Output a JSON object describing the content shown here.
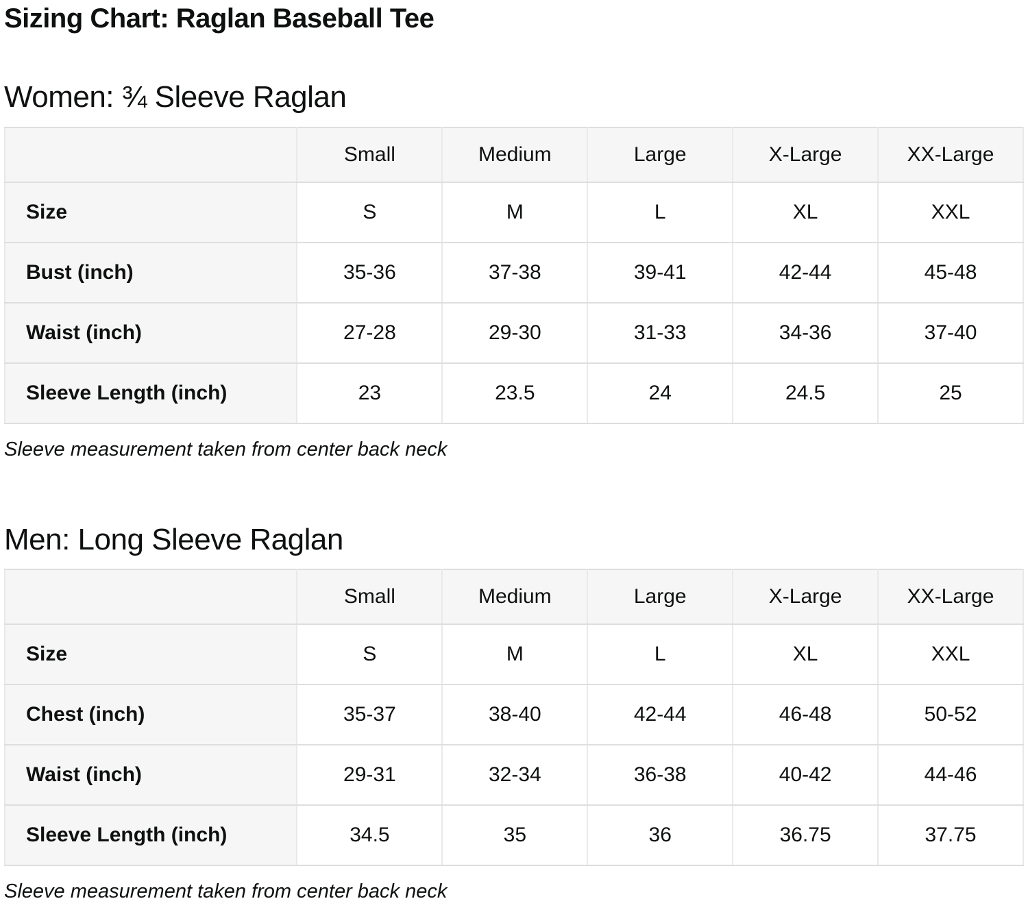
{
  "page": {
    "title": "Sizing Chart: Raglan Baseball Tee"
  },
  "colors": {
    "page_bg": "#ffffff",
    "text": "#0f1111",
    "header_cell_bg": "#f6f6f6",
    "row_border": "#dedede",
    "column_border": "#e9e9e9",
    "data_cell_bg": "#ffffff"
  },
  "sections": [
    {
      "heading": "Women: ¾ Sleeve Raglan",
      "note": "Sleeve measurement taken from center back neck",
      "table": {
        "column_headers": [
          "",
          "Small",
          "Medium",
          "Large",
          "X-Large",
          "XX-Large"
        ],
        "rows": [
          {
            "label": "Size",
            "values": [
              "S",
              "M",
              "L",
              "XL",
              "XXL"
            ]
          },
          {
            "label": "Bust (inch)",
            "values": [
              "35-36",
              "37-38",
              "39-41",
              "42-44",
              "45-48"
            ]
          },
          {
            "label": "Waist (inch)",
            "values": [
              "27-28",
              "29-30",
              "31-33",
              "34-36",
              "37-40"
            ]
          },
          {
            "label": "Sleeve Length (inch)",
            "values": [
              "23",
              "23.5",
              "24",
              "24.5",
              "25"
            ]
          }
        ]
      }
    },
    {
      "heading": "Men: Long Sleeve Raglan",
      "note": "Sleeve measurement taken from center back neck",
      "table": {
        "column_headers": [
          "",
          "Small",
          "Medium",
          "Large",
          "X-Large",
          "XX-Large"
        ],
        "rows": [
          {
            "label": "Size",
            "values": [
              "S",
              "M",
              "L",
              "XL",
              "XXL"
            ]
          },
          {
            "label": "Chest (inch)",
            "values": [
              "35-37",
              "38-40",
              "42-44",
              "46-48",
              "50-52"
            ]
          },
          {
            "label": "Waist (inch)",
            "values": [
              "29-31",
              "32-34",
              "36-38",
              "40-42",
              "44-46"
            ]
          },
          {
            "label": "Sleeve Length (inch)",
            "values": [
              "34.5",
              "35",
              "36",
              "36.75",
              "37.75"
            ]
          }
        ]
      }
    }
  ]
}
